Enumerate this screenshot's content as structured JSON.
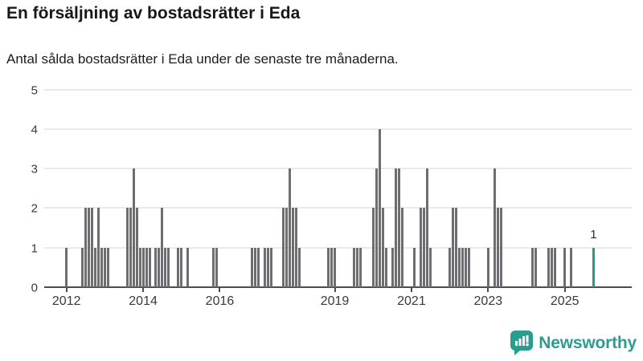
{
  "header": {
    "title": "En försäljning av bostadsrätter i Eda",
    "subtitle": "Antal sålda bostadsrätter i Eda under de senaste tre månaderna."
  },
  "chart_data": {
    "type": "bar",
    "title": "En försäljning av bostadsrätter i Eda",
    "subtitle": "Antal sålda bostadsrätter i Eda under de senaste tre månaderna.",
    "ylabel": "",
    "xlabel": "",
    "ylim": [
      0,
      5
    ],
    "y_ticks": [
      0,
      1,
      2,
      3,
      4,
      5
    ],
    "x_tick_years": [
      2012,
      2014,
      2016,
      2019,
      2021,
      2023,
      2025
    ],
    "x_range_months": [
      "2012-01",
      "2025-10"
    ],
    "grid": "horizontal",
    "colors": {
      "bar": "#6d6d72",
      "highlight": "#1e9c8c"
    },
    "points": [
      {
        "month": "2012-01",
        "value": 1
      },
      {
        "month": "2012-06",
        "value": 1
      },
      {
        "month": "2012-07",
        "value": 2
      },
      {
        "month": "2012-08",
        "value": 2
      },
      {
        "month": "2012-09",
        "value": 2
      },
      {
        "month": "2012-10",
        "value": 1
      },
      {
        "month": "2012-11",
        "value": 2
      },
      {
        "month": "2012-12",
        "value": 1
      },
      {
        "month": "2013-01",
        "value": 1
      },
      {
        "month": "2013-02",
        "value": 1
      },
      {
        "month": "2013-08",
        "value": 2
      },
      {
        "month": "2013-09",
        "value": 2
      },
      {
        "month": "2013-10",
        "value": 3
      },
      {
        "month": "2013-11",
        "value": 2
      },
      {
        "month": "2013-12",
        "value": 1
      },
      {
        "month": "2014-01",
        "value": 1
      },
      {
        "month": "2014-02",
        "value": 1
      },
      {
        "month": "2014-03",
        "value": 1
      },
      {
        "month": "2014-05",
        "value": 1
      },
      {
        "month": "2014-06",
        "value": 1
      },
      {
        "month": "2014-07",
        "value": 2
      },
      {
        "month": "2014-08",
        "value": 1
      },
      {
        "month": "2014-09",
        "value": 1
      },
      {
        "month": "2014-12",
        "value": 1
      },
      {
        "month": "2015-01",
        "value": 1
      },
      {
        "month": "2015-03",
        "value": 1
      },
      {
        "month": "2015-11",
        "value": 1
      },
      {
        "month": "2015-12",
        "value": 1
      },
      {
        "month": "2016-11",
        "value": 1
      },
      {
        "month": "2016-12",
        "value": 1
      },
      {
        "month": "2017-01",
        "value": 1
      },
      {
        "month": "2017-03",
        "value": 1
      },
      {
        "month": "2017-04",
        "value": 1
      },
      {
        "month": "2017-05",
        "value": 1
      },
      {
        "month": "2017-09",
        "value": 2
      },
      {
        "month": "2017-10",
        "value": 2
      },
      {
        "month": "2017-11",
        "value": 3
      },
      {
        "month": "2017-12",
        "value": 2
      },
      {
        "month": "2018-01",
        "value": 2
      },
      {
        "month": "2018-02",
        "value": 1
      },
      {
        "month": "2018-11",
        "value": 1
      },
      {
        "month": "2018-12",
        "value": 1
      },
      {
        "month": "2019-01",
        "value": 1
      },
      {
        "month": "2019-07",
        "value": 1
      },
      {
        "month": "2019-08",
        "value": 1
      },
      {
        "month": "2019-09",
        "value": 1
      },
      {
        "month": "2020-01",
        "value": 2
      },
      {
        "month": "2020-02",
        "value": 3
      },
      {
        "month": "2020-03",
        "value": 4
      },
      {
        "month": "2020-04",
        "value": 2
      },
      {
        "month": "2020-05",
        "value": 1
      },
      {
        "month": "2020-07",
        "value": 1
      },
      {
        "month": "2020-08",
        "value": 3
      },
      {
        "month": "2020-09",
        "value": 3
      },
      {
        "month": "2020-10",
        "value": 2
      },
      {
        "month": "2021-02",
        "value": 1
      },
      {
        "month": "2021-04",
        "value": 2
      },
      {
        "month": "2021-05",
        "value": 2
      },
      {
        "month": "2021-06",
        "value": 3
      },
      {
        "month": "2021-07",
        "value": 1
      },
      {
        "month": "2022-01",
        "value": 1
      },
      {
        "month": "2022-02",
        "value": 2
      },
      {
        "month": "2022-03",
        "value": 2
      },
      {
        "month": "2022-04",
        "value": 1
      },
      {
        "month": "2022-05",
        "value": 1
      },
      {
        "month": "2022-06",
        "value": 1
      },
      {
        "month": "2022-07",
        "value": 1
      },
      {
        "month": "2023-01",
        "value": 1
      },
      {
        "month": "2023-03",
        "value": 3
      },
      {
        "month": "2023-04",
        "value": 2
      },
      {
        "month": "2023-05",
        "value": 2
      },
      {
        "month": "2024-03",
        "value": 1
      },
      {
        "month": "2024-04",
        "value": 1
      },
      {
        "month": "2024-08",
        "value": 1
      },
      {
        "month": "2024-09",
        "value": 1
      },
      {
        "month": "2024-10",
        "value": 1
      },
      {
        "month": "2025-01",
        "value": 1
      },
      {
        "month": "2025-03",
        "value": 1
      },
      {
        "month": "2025-10",
        "value": 1,
        "highlight": true,
        "label": "1"
      }
    ]
  },
  "footer": {
    "brand": "Newsworthy"
  }
}
